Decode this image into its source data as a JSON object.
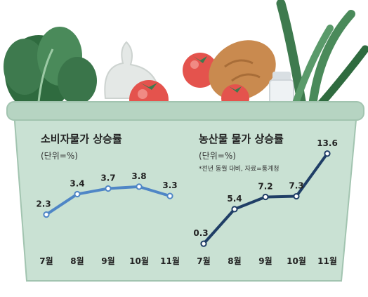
{
  "colors": {
    "basket_fill": "#c9e1d3",
    "basket_rim": "#b6d4c2",
    "basket_edge": "#a2c4b0",
    "cpi_line": "#4f86c6",
    "agri_line": "#1f3e66",
    "tomato": "#e4534d",
    "leaf": "#3e7a4e",
    "bread": "#c98a4f"
  },
  "icons": [
    "lettuce-icon",
    "plastic-bag-icon",
    "tomato-icon",
    "bread-icon",
    "milk-bottle-icon",
    "green-onion-icon"
  ],
  "chart_data": [
    {
      "type": "line",
      "title": "소비자물가 상승률",
      "unit_label": "(단위=%)",
      "categories": [
        "7월",
        "8월",
        "9월",
        "10월",
        "11월"
      ],
      "values": [
        2.3,
        3.4,
        3.7,
        3.8,
        3.3
      ],
      "value_labels": [
        "2.3",
        "3.4",
        "3.7",
        "3.8",
        "3.3"
      ],
      "color": "#4f86c6",
      "ylim": [
        1.0,
        4.4
      ]
    },
    {
      "type": "line",
      "title": "농산물 물가 상승률",
      "unit_label": "(단위=%)",
      "note": "*전년 동월 대비, 자료=통계청",
      "categories": [
        "7월",
        "8월",
        "9월",
        "10월",
        "11월"
      ],
      "values": [
        0.3,
        5.4,
        7.2,
        7.3,
        13.6
      ],
      "value_labels": [
        "0.3",
        "5.4",
        "7.2",
        "7.3",
        "13.6"
      ],
      "color": "#1f3e66",
      "ylim": [
        0.0,
        14.3
      ]
    }
  ]
}
